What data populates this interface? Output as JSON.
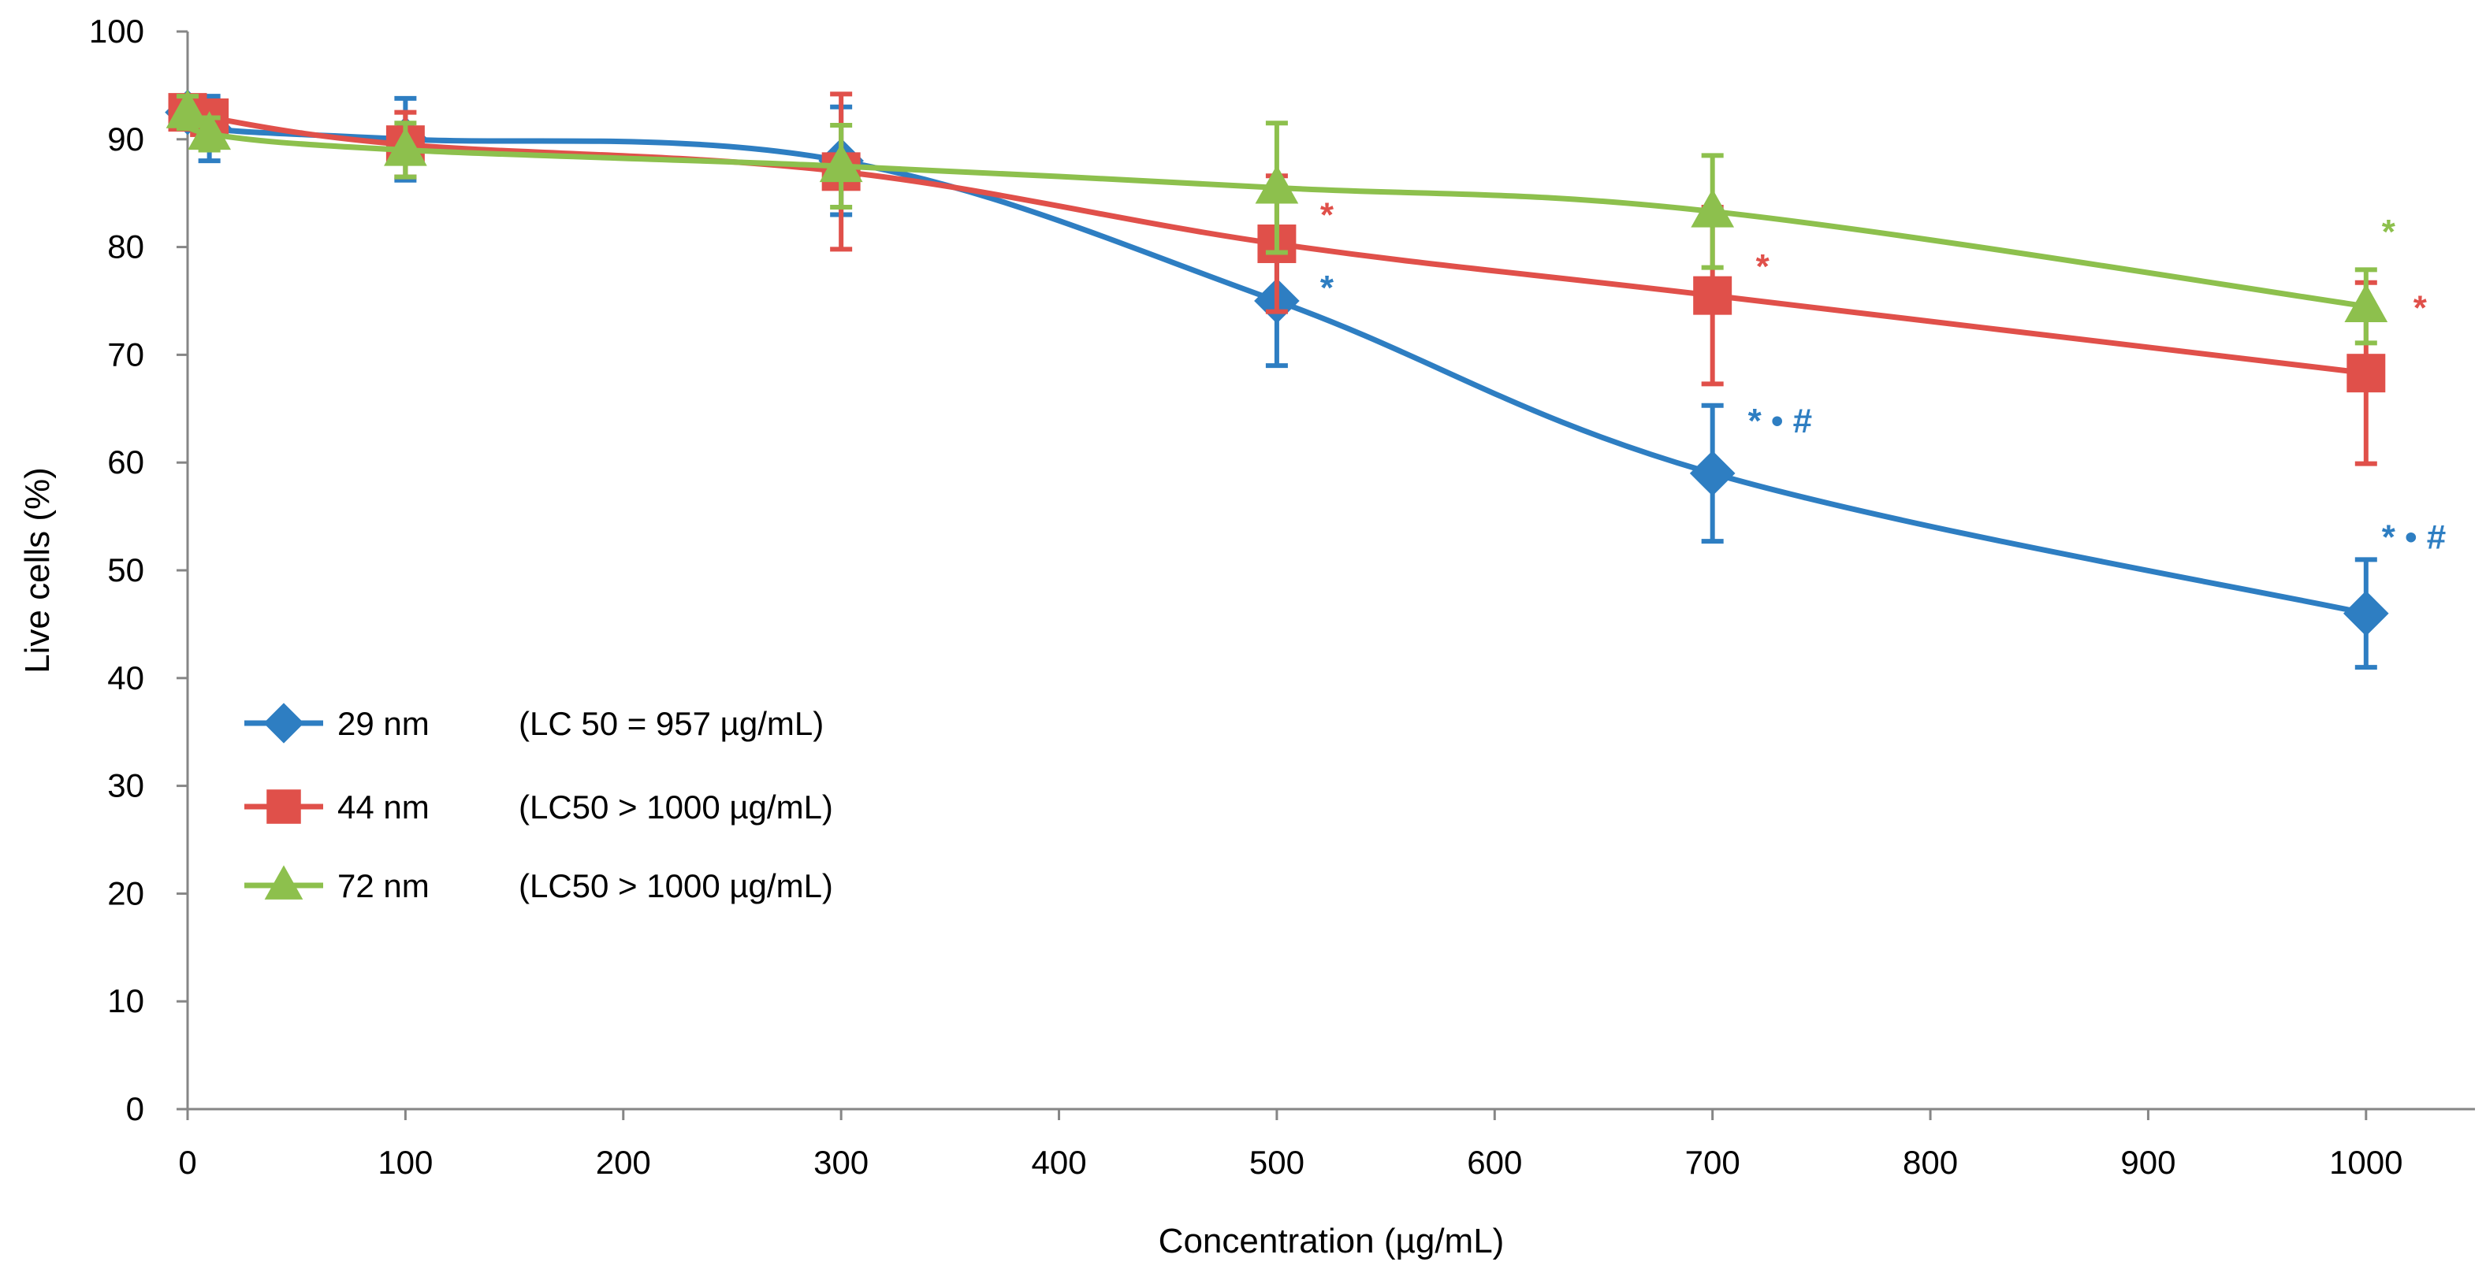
{
  "chart_data": {
    "type": "line",
    "title": "",
    "xlabel": "Concentration (µg/mL)",
    "ylabel": "Live cells (%)",
    "xlim": [
      0,
      1050
    ],
    "ylim": [
      0,
      100
    ],
    "x_ticks": [
      0,
      100,
      200,
      300,
      400,
      500,
      600,
      700,
      800,
      900,
      1000
    ],
    "y_ticks": [
      0,
      10,
      20,
      30,
      40,
      50,
      60,
      70,
      80,
      90,
      100
    ],
    "grid": false,
    "legend_position": "lower-left",
    "series": [
      {
        "name": "29 nm",
        "legend_note": "(LC 50 = 957 µg/mL)",
        "color": "#2E7EC2",
        "marker": "diamond",
        "x": [
          0,
          10,
          100,
          300,
          500,
          700,
          1000
        ],
        "values": [
          92.5,
          91,
          90,
          88,
          75,
          59,
          46
        ],
        "errors": [
          1.5,
          3,
          3.8,
          5,
          6,
          6.3,
          5
        ],
        "annotations": [
          {
            "x": 500,
            "y": 75,
            "text": "*"
          },
          {
            "x": 700,
            "y": 59,
            "text": "* • #"
          },
          {
            "x": 1000,
            "y": 46,
            "text": "* • #"
          }
        ]
      },
      {
        "name": "44 nm",
        "legend_note": "(LC50 > 1000 µg/mL)",
        "color": "#E0504A",
        "marker": "square",
        "x": [
          0,
          10,
          100,
          300,
          500,
          700,
          1000
        ],
        "values": [
          92.5,
          92,
          89.5,
          87,
          80.3,
          75.5,
          68.3
        ],
        "errors": [
          1.5,
          1.5,
          3,
          7.2,
          6.3,
          8.2,
          8.4
        ],
        "annotations": [
          {
            "x": 500,
            "y": 80.3,
            "text": "*"
          },
          {
            "x": 700,
            "y": 75.5,
            "text": "*"
          },
          {
            "x": 1000,
            "y": 68.3,
            "text": "*"
          }
        ]
      },
      {
        "name": "72 nm",
        "legend_note": "(LC50 > 1000 µg/mL)",
        "color": "#8DC04D",
        "marker": "triangle",
        "x": [
          0,
          10,
          100,
          300,
          500,
          700,
          1000
        ],
        "values": [
          92.5,
          90.5,
          89,
          87.5,
          85.5,
          83.3,
          74.5
        ],
        "errors": [
          1.5,
          1.5,
          2.5,
          3.8,
          6,
          5.2,
          3.4
        ],
        "annotations": [
          {
            "x": 1000,
            "y": 74.5,
            "text": "*"
          }
        ]
      }
    ]
  }
}
